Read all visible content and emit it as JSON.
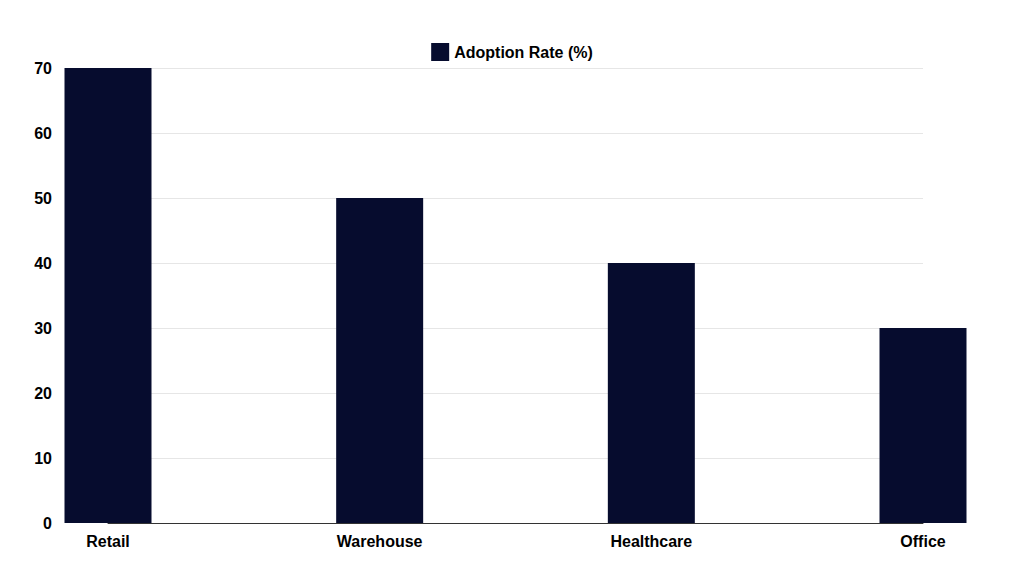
{
  "chart_data": {
    "type": "bar",
    "categories": [
      "Retail",
      "Warehouse",
      "Healthcare",
      "Office"
    ],
    "series": [
      {
        "name": "Adoption Rate (%)",
        "color": "#060c2e",
        "values": [
          70,
          50,
          40,
          30
        ]
      }
    ],
    "ylim": [
      0,
      70
    ],
    "yticks": [
      0,
      10,
      20,
      30,
      40,
      50,
      60,
      70
    ],
    "grid": true,
    "legend": "top"
  }
}
